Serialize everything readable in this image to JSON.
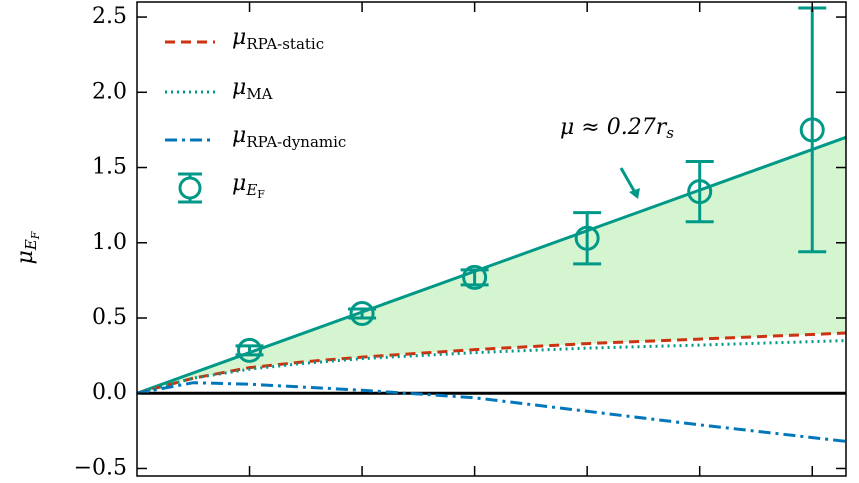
{
  "chart_data": {
    "type": "line",
    "ylabel": {
      "text": "μ",
      "subscript": "E",
      "subsubscript": "F"
    },
    "xlim": [
      0,
      6.3
    ],
    "xticks": [
      1,
      2,
      3,
      4,
      5,
      6
    ],
    "ylim": [
      -0.55,
      2.6
    ],
    "yticks": [
      {
        "value": -0.5,
        "label": "−0.5"
      },
      {
        "value": 0,
        "label": "0.0"
      },
      {
        "value": 0.5,
        "label": "0.5"
      },
      {
        "value": 1,
        "label": "1.0"
      },
      {
        "value": 1.5,
        "label": "1.5"
      },
      {
        "value": 2,
        "label": "2.0"
      },
      {
        "value": 2.5,
        "label": "2.5"
      }
    ],
    "hline": 0,
    "fill_color": "#d4f5d0",
    "series": [
      {
        "name": "μ",
        "subscript": "RPA-static",
        "color": "#cc3311",
        "dash": "10,6",
        "x": [
          0,
          0.5,
          1,
          1.5,
          2,
          3,
          4,
          5,
          6.3
        ],
        "values": [
          0,
          0.1,
          0.17,
          0.21,
          0.24,
          0.29,
          0.33,
          0.36,
          0.4
        ]
      },
      {
        "name": "μ",
        "subscript": "MA",
        "color": "#009988",
        "dash": "2,4",
        "x": [
          0,
          0.5,
          1,
          1.5,
          2,
          3,
          4,
          5,
          6.3
        ],
        "values": [
          0,
          0.1,
          0.16,
          0.2,
          0.23,
          0.27,
          0.3,
          0.32,
          0.35
        ]
      },
      {
        "name": "μ",
        "subscript": "RPA-dynamic",
        "color": "#0077bb",
        "dash": "12,5,3,5",
        "x": [
          0,
          0.5,
          1,
          1.5,
          2,
          3,
          4,
          5,
          6.3
        ],
        "values": [
          0,
          0.07,
          0.06,
          0.04,
          0.02,
          -0.03,
          -0.12,
          -0.21,
          -0.32
        ]
      }
    ],
    "points": {
      "name": "μ",
      "subscript": "E",
      "subsubscript": "F",
      "color": "#009988",
      "x": [
        1,
        2,
        3,
        4,
        5,
        6
      ],
      "values": [
        0.285,
        0.53,
        0.77,
        1.03,
        1.34,
        1.75
      ],
      "errors": [
        0.03,
        0.03,
        0.05,
        0.17,
        0.2,
        0.81
      ]
    },
    "fit": {
      "color": "#009988",
      "x": [
        0,
        6.3
      ],
      "values": [
        0,
        1.701
      ]
    },
    "annotation": {
      "text": "μ ≈ 0.27r",
      "subscript": "s"
    }
  }
}
